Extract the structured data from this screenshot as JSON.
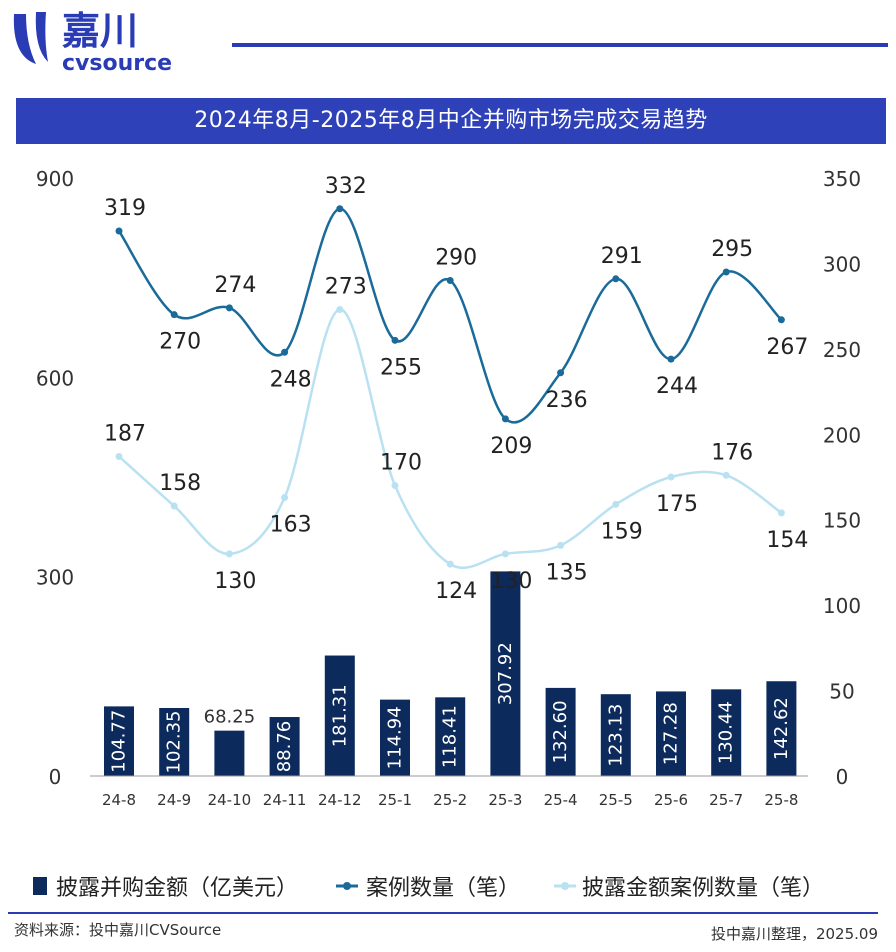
{
  "brand": {
    "name_cn": "嘉川",
    "name_en": "cvsource",
    "primary_color": "#2a3bb6"
  },
  "title": "2024年8月-2025年8月中企并购市场完成交易趋势",
  "chart_data": {
    "type": "bar+line",
    "categories": [
      "24-8",
      "24-9",
      "24-10",
      "24-11",
      "24-12",
      "25-1",
      "25-2",
      "25-3",
      "25-4",
      "25-5",
      "25-6",
      "25-7",
      "25-8"
    ],
    "series": [
      {
        "name": "披露并购金额（亿美元）",
        "type": "bar",
        "axis": "left",
        "color": "#0d2a5c",
        "values": [
          104.77,
          102.35,
          68.25,
          88.76,
          181.31,
          114.94,
          118.41,
          307.92,
          132.6,
          123.13,
          127.28,
          130.44,
          142.62
        ]
      },
      {
        "name": "案例数量（笔）",
        "type": "line",
        "axis": "right",
        "color": "#1a6b9a",
        "values": [
          319,
          270,
          274,
          248,
          332,
          255,
          290,
          209,
          236,
          291,
          244,
          295,
          267
        ]
      },
      {
        "name": "披露金额案例数量（笔）",
        "type": "line",
        "axis": "right",
        "color": "#b9e1f2",
        "values": [
          187,
          158,
          130,
          163,
          273,
          170,
          124,
          130,
          135,
          159,
          175,
          176,
          154
        ]
      }
    ],
    "y_left": {
      "min": 0,
      "max": 900,
      "ticks": [
        0,
        300,
        600,
        900
      ]
    },
    "y_right": {
      "min": 0,
      "max": 350,
      "ticks": [
        0,
        50,
        100,
        150,
        200,
        250,
        300,
        350
      ]
    },
    "bar_labels": [
      "104.77",
      "102.35",
      "68.25",
      "88.76",
      "181.31",
      "114.94",
      "118.41",
      "307.92",
      "132.60",
      "123.13",
      "127.28",
      "130.44",
      "142.62"
    ],
    "legend_position": "bottom"
  },
  "footer": {
    "source": "资料来源：投中嘉川CVSource",
    "credit": "投中嘉川整理，2025.09"
  }
}
